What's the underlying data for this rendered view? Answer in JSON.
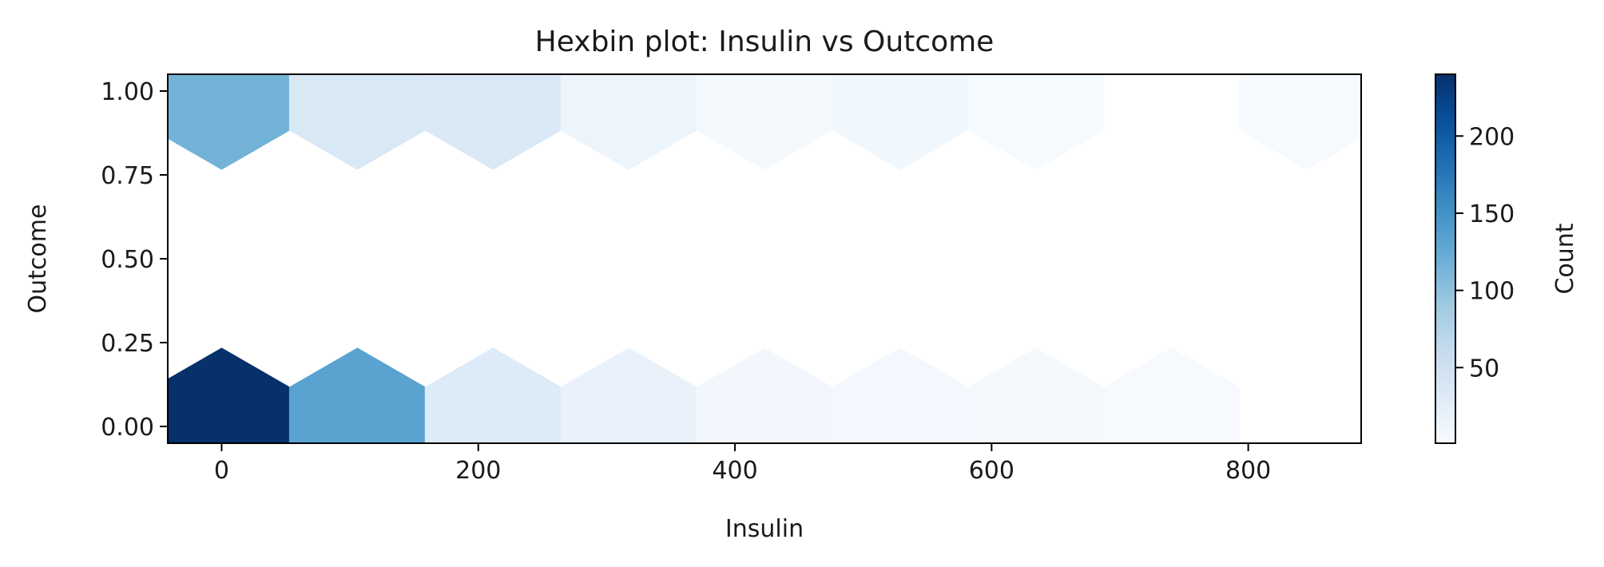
{
  "chart_data": {
    "type": "heatmap",
    "subtype": "hexbin",
    "title": "Hexbin plot: Insulin vs Outcome",
    "xlabel": "Insulin",
    "ylabel": "Outcome",
    "xlim": [
      -42,
      888
    ],
    "ylim": [
      -0.05,
      1.05
    ],
    "x_ticks": [
      0,
      200,
      400,
      600,
      800
    ],
    "y_ticks": [
      0.0,
      0.25,
      0.5,
      0.75,
      1.0
    ],
    "y_tick_labels": [
      "0.00",
      "0.25",
      "0.50",
      "0.75",
      "1.00"
    ],
    "hex_spacing": 105.75,
    "colormap": "Blues",
    "colormap_stops": [
      "#f7fbff",
      "#deebf7",
      "#c6dbef",
      "#9ecae1",
      "#6baed6",
      "#4292c6",
      "#2171b5",
      "#08519c",
      "#08306b"
    ],
    "color_range": [
      1,
      240
    ],
    "colorbar": {
      "label": "Count",
      "ticks": [
        50,
        100,
        150,
        200
      ]
    },
    "grid": false,
    "bins": [
      {
        "x": 0,
        "y": 0,
        "count": 240
      },
      {
        "x": 105.75,
        "y": 0,
        "count": 133
      },
      {
        "x": 211.5,
        "y": 0,
        "count": 32
      },
      {
        "x": 317.25,
        "y": 0,
        "count": 18
      },
      {
        "x": 423,
        "y": 0,
        "count": 8
      },
      {
        "x": 528.75,
        "y": 0,
        "count": 7
      },
      {
        "x": 634.5,
        "y": 0,
        "count": 4
      },
      {
        "x": 740.25,
        "y": 0,
        "count": 2
      },
      {
        "x": 0,
        "y": 1,
        "count": 115
      },
      {
        "x": 105.75,
        "y": 1,
        "count": 37
      },
      {
        "x": 211.5,
        "y": 1,
        "count": 35
      },
      {
        "x": 317.25,
        "y": 1,
        "count": 14
      },
      {
        "x": 423,
        "y": 1,
        "count": 5
      },
      {
        "x": 528.75,
        "y": 1,
        "count": 9
      },
      {
        "x": 634.5,
        "y": 1,
        "count": 3
      },
      {
        "x": 846,
        "y": 1,
        "count": 2
      }
    ]
  }
}
